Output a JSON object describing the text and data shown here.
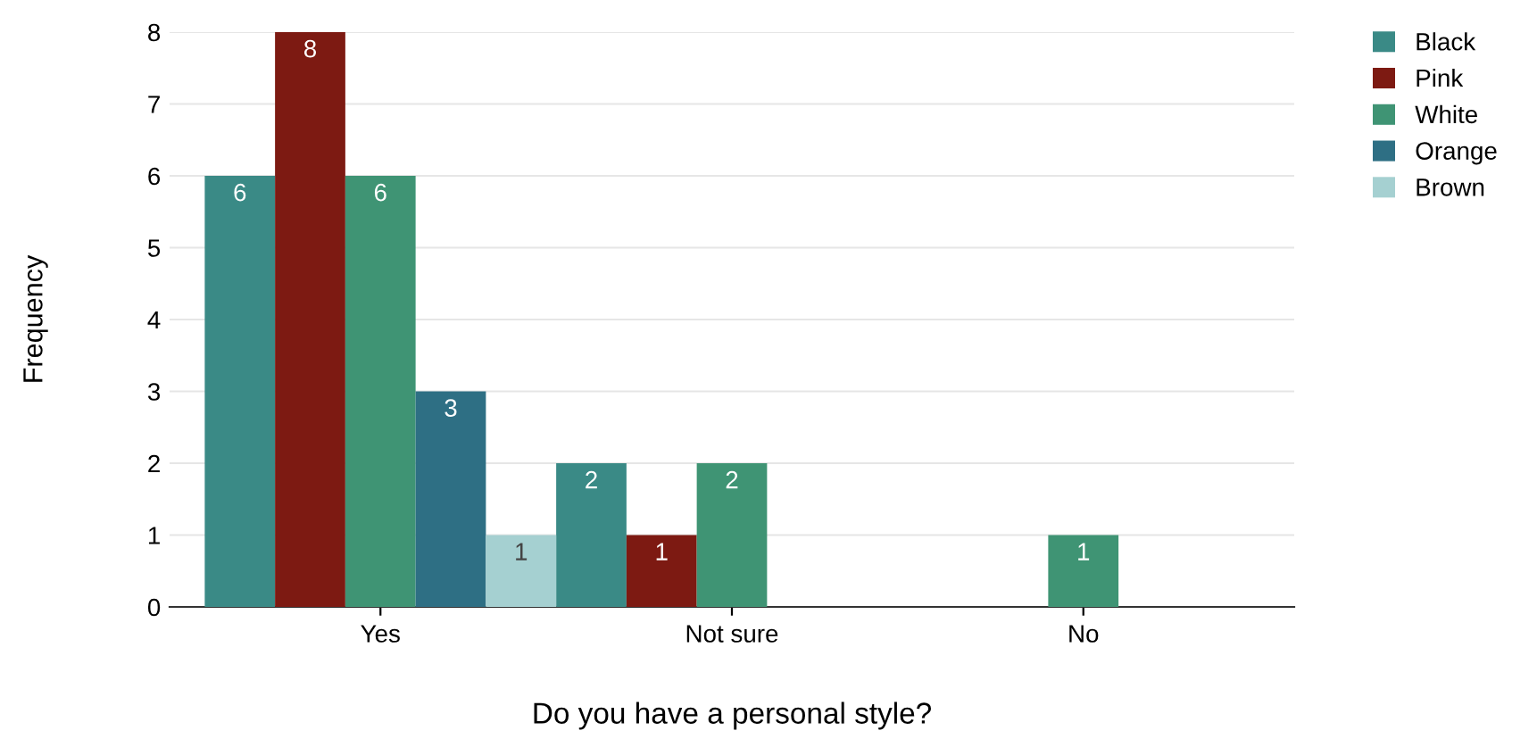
{
  "chart_data": {
    "type": "bar",
    "xlabel": "Do you have a personal style?",
    "ylabel": "Frequency",
    "categories": [
      "Yes",
      "Not sure",
      "No"
    ],
    "series": [
      {
        "name": "Black",
        "color": "#3a8a86",
        "values": [
          6,
          2,
          null
        ]
      },
      {
        "name": "Pink",
        "color": "#7d1a12",
        "values": [
          8,
          1,
          null
        ]
      },
      {
        "name": "White",
        "color": "#3f9474",
        "values": [
          6,
          2,
          1
        ]
      },
      {
        "name": "Orange",
        "color": "#2e6f84",
        "values": [
          3,
          null,
          null
        ]
      },
      {
        "name": "Brown",
        "color": "#a5d0d1",
        "values": [
          1,
          null,
          null
        ]
      }
    ],
    "ylim": [
      0,
      8
    ],
    "yticks": [
      0,
      1,
      2,
      3,
      4,
      5,
      6,
      7,
      8
    ],
    "grid": "y",
    "legend": "top right",
    "data_labels": true
  }
}
